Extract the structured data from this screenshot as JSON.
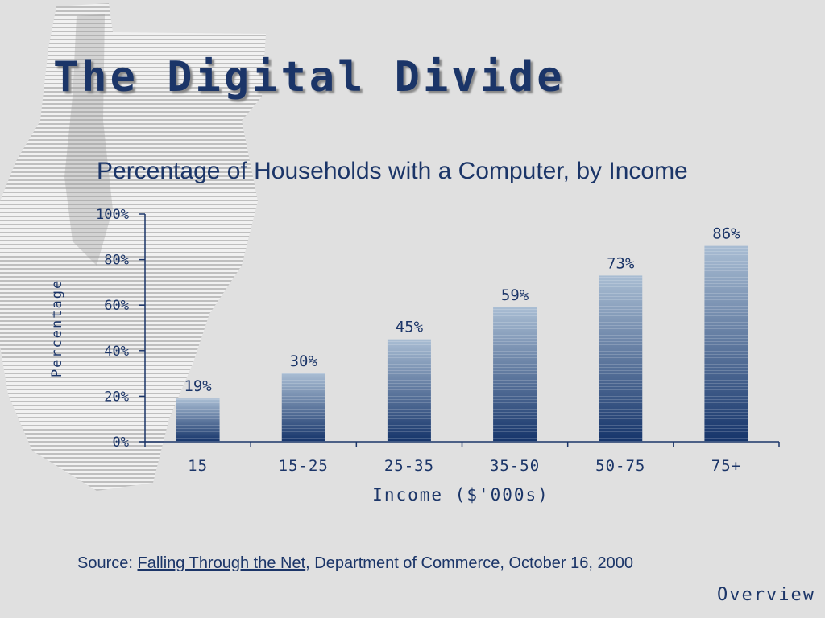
{
  "slide": {
    "title": "The Digital Divide",
    "nav_link": "Overview"
  },
  "source": {
    "prefix": "Source: ",
    "link_text": "Falling Through the Net",
    "suffix": ", Department of Commerce, October 16, 2000"
  },
  "colors": {
    "text": "#1b3568",
    "bar_top": "#a9bdd3",
    "bar_bottom": "#15346a",
    "background": "#e0e0e0"
  },
  "chart_data": {
    "type": "bar",
    "title": "Percentage of Households with a Computer, by Income",
    "xlabel": "Income ($'000s)",
    "ylabel": "Percentage",
    "categories": [
      "15",
      "15-25",
      "25-35",
      "35-50",
      "50-75",
      "75+"
    ],
    "values": [
      19,
      30,
      45,
      59,
      73,
      86
    ],
    "value_labels": [
      "19%",
      "30%",
      "45%",
      "59%",
      "73%",
      "86%"
    ],
    "ylim": [
      0,
      100
    ],
    "yticks": [
      0,
      20,
      40,
      60,
      80,
      100
    ],
    "ytick_labels": [
      "0%",
      "20%",
      "40%",
      "60%",
      "80%",
      "100%"
    ],
    "grid": false,
    "legend": "none"
  }
}
